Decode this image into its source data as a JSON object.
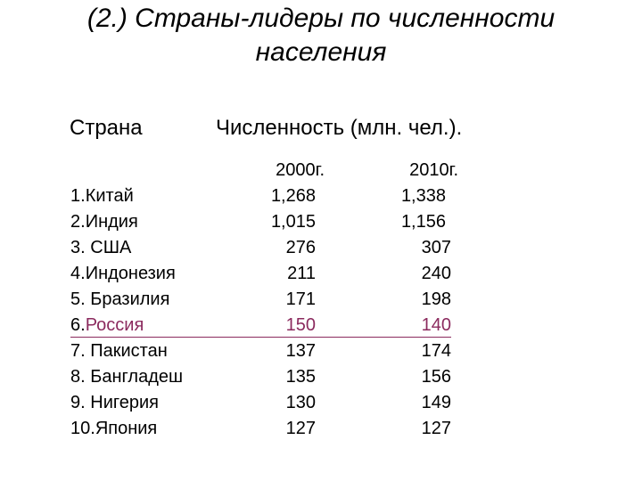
{
  "title": {
    "line1": "(2.) Страны-лидеры по численности",
    "line2": "населения"
  },
  "headers": {
    "country": "Страна",
    "population": "Численность (млн. чел.)."
  },
  "years": {
    "y2000": "2000г.",
    "y2010": "2010г."
  },
  "rows": [
    {
      "num": "1.",
      "name": "Китай",
      "v2000": "1,268",
      "v2010": "1,338"
    },
    {
      "num": "2.",
      "name": "Индия",
      "v2000": "1,015",
      "v2010": "1,156"
    },
    {
      "num": "3. ",
      "name": "США",
      "v2000": "276",
      "v2010": "307"
    },
    {
      "num": "4.",
      "name": "Индонезия",
      "v2000": "211",
      "v2010": "240"
    },
    {
      "num": "5. ",
      "name": "Бразилия",
      "v2000": "171",
      "v2010": "198"
    },
    {
      "num": "6.",
      "name": "Россия",
      "v2000": "150",
      "v2010": "140"
    },
    {
      "num": "7. ",
      "name": "Пакистан",
      "v2000": "137",
      "v2010": "174"
    },
    {
      "num": "8. ",
      "name": "Бангладеш",
      "v2000": "135",
      "v2010": "156"
    },
    {
      "num": "9. ",
      "name": "Нигерия",
      "v2000": "130",
      "v2010": "149"
    },
    {
      "num": "10.",
      "name": "Япония",
      "v2000": "127",
      "v2010": "127"
    }
  ],
  "highlight_color": "#8b2a5e"
}
